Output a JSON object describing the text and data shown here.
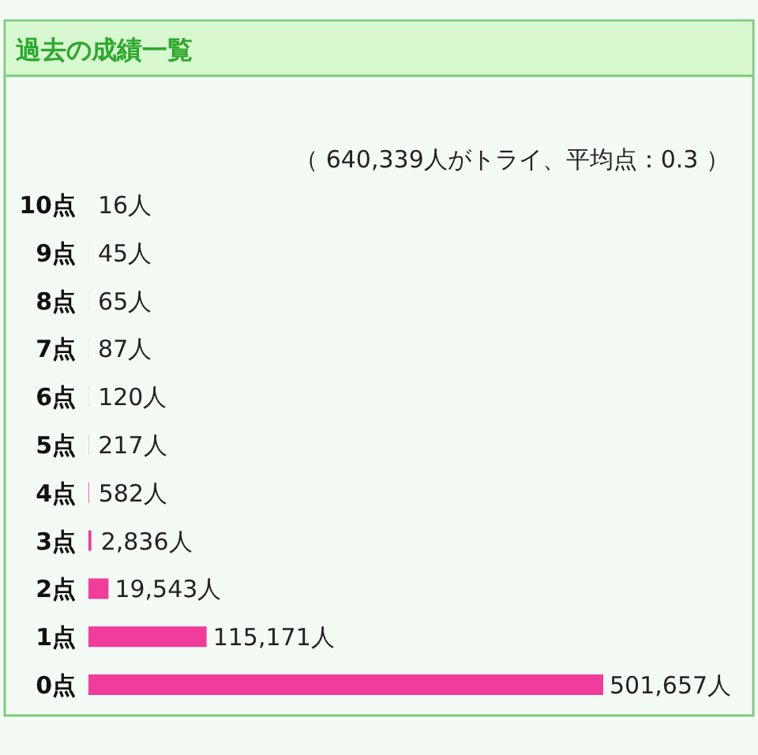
{
  "chart_data": {
    "type": "bar",
    "orientation": "horizontal",
    "title": "過去の成績一覧",
    "subtitle": "（ 640,339人がトライ、平均点：0.3 ）",
    "categories": [
      "10点",
      "9点",
      "8点",
      "7点",
      "6点",
      "5点",
      "4点",
      "3点",
      "2点",
      "1点",
      "0点"
    ],
    "values": [
      16,
      45,
      65,
      87,
      120,
      217,
      582,
      2836,
      19543,
      115171,
      501657
    ],
    "value_labels": [
      "16人",
      "45人",
      "65人",
      "87人",
      "120人",
      "217人",
      "582人",
      "2,836人",
      "19,543人",
      "115,171人",
      "501,657人"
    ],
    "color": "#f03c9a"
  }
}
